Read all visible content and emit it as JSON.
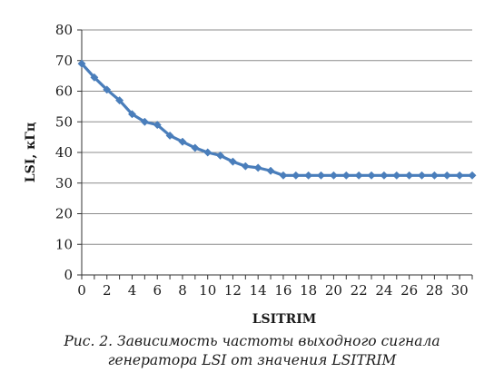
{
  "chart_data": {
    "type": "line",
    "xlabel": "LSITRIM",
    "ylabel": "LSI, кГц",
    "xlim": [
      0,
      31
    ],
    "ylim": [
      0,
      80
    ],
    "x_ticks": [
      0,
      2,
      4,
      6,
      8,
      10,
      12,
      14,
      16,
      18,
      20,
      22,
      24,
      26,
      28,
      30
    ],
    "y_ticks": [
      0,
      10,
      20,
      30,
      40,
      50,
      60,
      70,
      80
    ],
    "grid": "horizontal",
    "legend": "none",
    "series": [
      {
        "color": "#4a7ebb",
        "x": [
          0,
          1,
          2,
          3,
          4,
          5,
          6,
          7,
          8,
          9,
          10,
          11,
          12,
          13,
          14,
          15,
          16,
          17,
          18,
          19,
          20,
          21,
          22,
          23,
          24,
          25,
          26,
          27,
          28,
          29,
          30,
          31
        ],
        "y": [
          69,
          64.5,
          60.5,
          57,
          52.5,
          50,
          49,
          45.5,
          43.5,
          41.5,
          40,
          39,
          37,
          35.5,
          35,
          34,
          32.5,
          32.5,
          32.5,
          32.5,
          32.5,
          32.5,
          32.5,
          32.5,
          32.5,
          32.5,
          32.5,
          32.5,
          32.5,
          32.5,
          32.5,
          32.5
        ]
      }
    ]
  },
  "caption": {
    "prefix": "Рис. 2.",
    "line1": " Зависимость частоты выходного сигнала",
    "line2": "генератора LSI от значения LSITRIM"
  }
}
